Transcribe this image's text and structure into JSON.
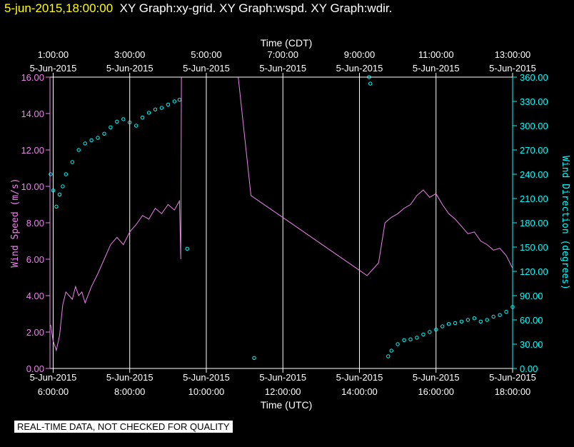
{
  "header": {
    "timestamp": "5-jun-2015,18:00:00",
    "title": "XY Graph:xy-grid.  XY Graph:wspd.  XY Graph:wdir."
  },
  "notice": "REAL-TIME DATA, NOT CHECKED FOR QUALITY",
  "colors": {
    "speed": "#ee82ee",
    "direction": "#00ffff",
    "axis": "#ffffff",
    "background": "#000000",
    "timestamp": "#ffff00"
  },
  "chart_data": {
    "type": "line",
    "xlabel": "Time (UTC)",
    "x2label": "Time (CDT)",
    "ylabel": "Wind  Speed  (m/s)",
    "y2label": "Wind  Direction  (degrees)",
    "xlim": [
      "05:55",
      "18:00"
    ],
    "ylim": [
      0,
      16
    ],
    "y2lim": [
      0,
      360
    ],
    "grid": true,
    "bottom_ticks": [
      {
        "time": "06:00",
        "date": "5-Jun-2015",
        "label": "6:00:00"
      },
      {
        "time": "08:00",
        "date": "5-Jun-2015",
        "label": "8:00:00"
      },
      {
        "time": "10:00",
        "date": "5-Jun-2015",
        "label": "10:00:00"
      },
      {
        "time": "12:00",
        "date": "5-Jun-2015",
        "label": "12:00:00"
      },
      {
        "time": "14:00",
        "date": "5-Jun-2015",
        "label": "14:00:00"
      },
      {
        "time": "16:00",
        "date": "5-Jun-2015",
        "label": "16:00:00"
      },
      {
        "time": "18:00",
        "date": "5-Jun-2015",
        "label": "18:00:00"
      }
    ],
    "top_ticks": [
      {
        "time": "06:00",
        "label": "1:00:00",
        "date": "5-Jun-2015"
      },
      {
        "time": "08:00",
        "label": "3:00:00",
        "date": "5-Jun-2015"
      },
      {
        "time": "10:00",
        "label": "5:00:00",
        "date": "5-Jun-2015"
      },
      {
        "time": "12:00",
        "label": "7:00:00",
        "date": "5-Jun-2015"
      },
      {
        "time": "14:00",
        "label": "9:00:00",
        "date": "5-Jun-2015"
      },
      {
        "time": "16:00",
        "label": "11:00:00",
        "date": "5-Jun-2015"
      },
      {
        "time": "18:00",
        "label": "13:00:00",
        "date": "5-Jun-2015"
      }
    ],
    "yticks": [
      "0.00",
      "2.00",
      "4.00",
      "6.00",
      "8.00",
      "10.00",
      "12.00",
      "14.00",
      "16.00"
    ],
    "y2ticks": [
      "0.00",
      "30.00",
      "60.00",
      "90.00",
      "120.00",
      "150.00",
      "180.00",
      "210.00",
      "240.00",
      "270.00",
      "300.00",
      "330.00",
      "360.00"
    ],
    "series": [
      {
        "kind": "line",
        "axis": "left",
        "x": [
          "05:56",
          "06:00",
          "06:05",
          "06:10",
          "06:15",
          "06:20",
          "06:25",
          "06:30",
          "06:35",
          "06:40",
          "06:45",
          "06:50",
          "07:00",
          "07:10",
          "07:20",
          "07:30",
          "07:40",
          "07:50",
          "08:00",
          "08:10",
          "08:20",
          "08:30",
          "08:40",
          "08:50",
          "09:00",
          "09:10",
          "09:18",
          "09:20",
          "09:21",
          "10:50",
          "11:10",
          "14:12",
          "14:30",
          "14:40",
          "14:50",
          "15:00",
          "15:10",
          "15:20",
          "15:30",
          "15:40",
          "15:50",
          "16:00",
          "16:10",
          "16:20",
          "16:30",
          "16:40",
          "16:50",
          "17:00",
          "17:10",
          "17:20",
          "17:30",
          "17:40",
          "17:50",
          "18:00"
        ],
        "y": [
          2.4,
          1.5,
          1.0,
          1.8,
          3.5,
          4.2,
          4.0,
          3.8,
          4.5,
          4.0,
          4.2,
          3.6,
          4.5,
          5.2,
          6.0,
          6.8,
          7.2,
          6.8,
          7.5,
          7.9,
          8.4,
          8.2,
          8.8,
          8.5,
          9.0,
          8.7,
          9.2,
          6.0,
          16.0,
          16.0,
          9.5,
          5.1,
          5.8,
          8.0,
          8.3,
          8.5,
          8.8,
          9.0,
          9.5,
          9.8,
          9.4,
          9.6,
          9.0,
          8.5,
          8.2,
          7.8,
          7.4,
          7.5,
          7.0,
          6.8,
          6.5,
          6.6,
          6.2,
          5.5
        ]
      },
      {
        "kind": "scatter",
        "axis": "right",
        "x": [
          "05:56",
          "06:00",
          "06:05",
          "06:10",
          "06:15",
          "06:20",
          "06:30",
          "06:40",
          "06:50",
          "07:00",
          "07:10",
          "07:20",
          "07:30",
          "07:40",
          "07:50",
          "08:00",
          "08:10",
          "08:20",
          "08:30",
          "08:40",
          "08:50",
          "09:00",
          "09:10",
          "09:18",
          "09:30",
          "11:15",
          "14:15",
          "14:17",
          "14:45",
          "14:50",
          "15:00",
          "15:10",
          "15:20",
          "15:30",
          "15:40",
          "15:50",
          "16:00",
          "16:10",
          "16:20",
          "16:30",
          "16:40",
          "16:50",
          "17:00",
          "17:10",
          "17:20",
          "17:30",
          "17:40",
          "17:50",
          "18:00"
        ],
        "y": [
          240,
          220,
          200,
          215,
          225,
          240,
          255,
          270,
          278,
          282,
          285,
          290,
          298,
          305,
          308,
          304,
          300,
          310,
          316,
          320,
          322,
          326,
          330,
          332,
          148,
          13,
          360,
          352,
          15,
          22,
          30,
          35,
          36,
          38,
          42,
          45,
          48,
          52,
          55,
          56,
          58,
          60,
          62,
          58,
          60,
          64,
          66,
          70,
          76
        ]
      }
    ]
  }
}
